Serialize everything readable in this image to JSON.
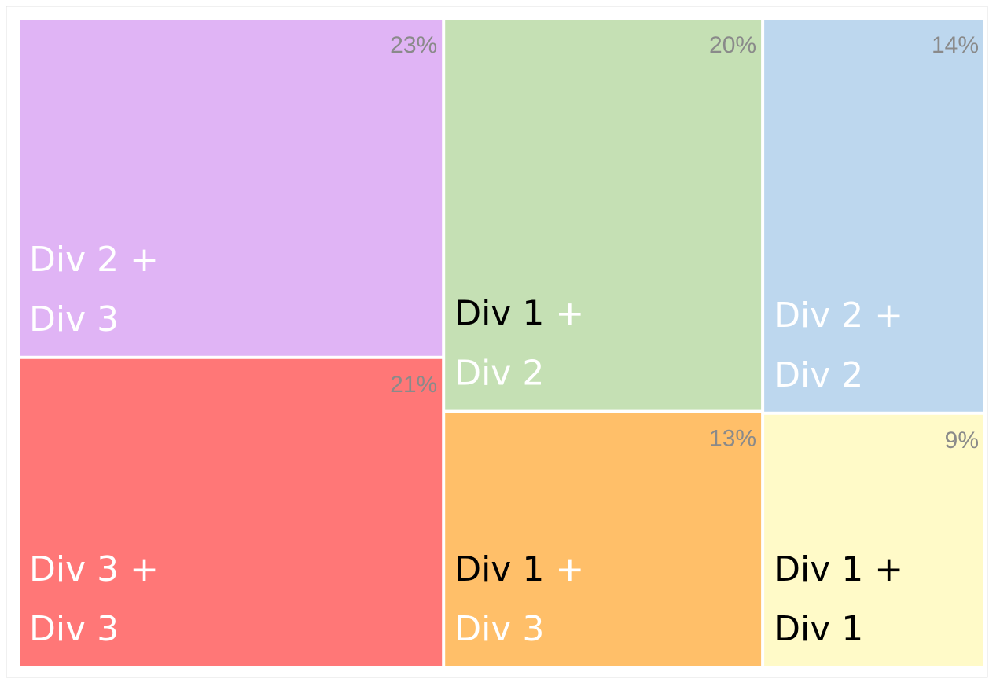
{
  "chart_data": {
    "type": "treemap",
    "series": [
      {
        "value": 23,
        "value_label": "23%",
        "color": "#e0b4f5",
        "label": [
          {
            "text": "Div 2",
            "color": "#ffffff"
          },
          {
            "text": "+",
            "color": "#ffffff"
          },
          {
            "text": "Div 3",
            "color": "#ffffff"
          }
        ]
      },
      {
        "value": 21,
        "value_label": "21%",
        "color": "#ff7777",
        "label": [
          {
            "text": "Div 3",
            "color": "#ffffff"
          },
          {
            "text": "+",
            "color": "#ffffff"
          },
          {
            "text": "Div 3",
            "color": "#ffffff"
          }
        ]
      },
      {
        "value": 20,
        "value_label": "20%",
        "color": "#c5e0b4",
        "label": [
          {
            "text": "Div 1",
            "color": "#000000"
          },
          {
            "text": "+",
            "color": "#ffffff"
          },
          {
            "text": "Div 2",
            "color": "#ffffff"
          }
        ]
      },
      {
        "value": 13,
        "value_label": "13%",
        "color": "#ffbf69",
        "label": [
          {
            "text": "Div 1",
            "color": "#000000"
          },
          {
            "text": "+",
            "color": "#ffffff"
          },
          {
            "text": "Div 3",
            "color": "#ffffff"
          }
        ]
      },
      {
        "value": 14,
        "value_label": "14%",
        "color": "#bdd7ee",
        "label": [
          {
            "text": "Div 2",
            "color": "#ffffff"
          },
          {
            "text": "+",
            "color": "#ffffff"
          },
          {
            "text": "Div 2",
            "color": "#ffffff"
          }
        ]
      },
      {
        "value": 9,
        "value_label": "9%",
        "color": "#fffac8",
        "label": [
          {
            "text": "Div 1",
            "color": "#000000"
          },
          {
            "text": "+",
            "color": "#000000"
          },
          {
            "text": "Div 1",
            "color": "#000000"
          }
        ]
      }
    ]
  }
}
